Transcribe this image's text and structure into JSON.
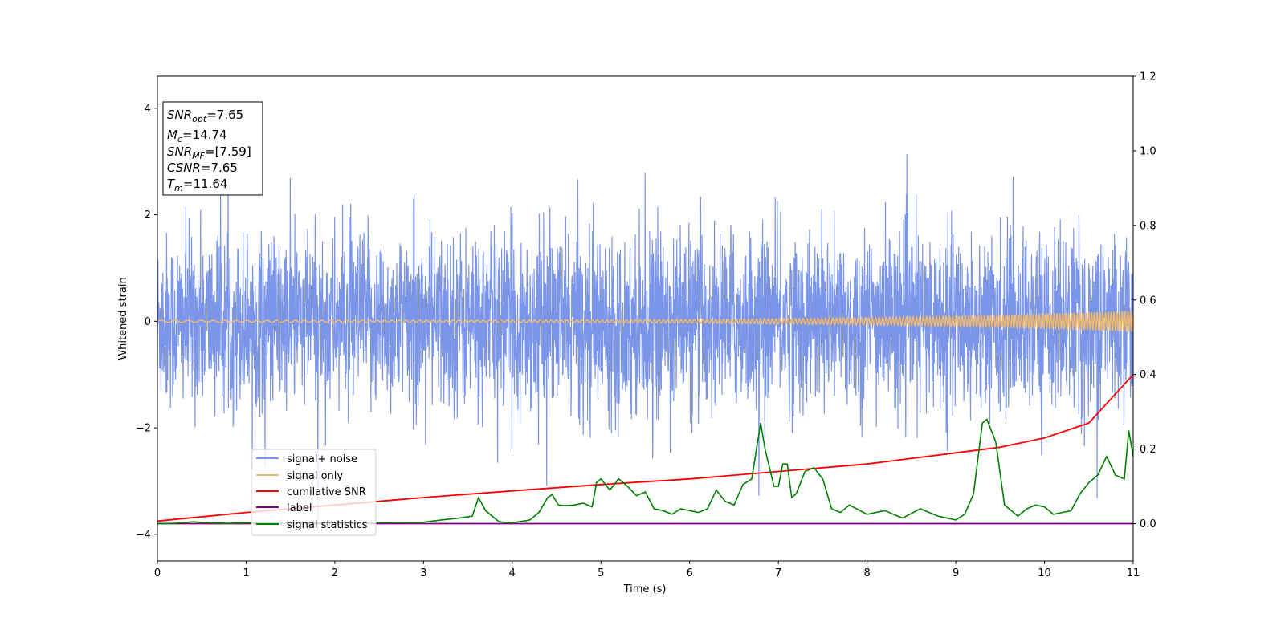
{
  "chart_data": {
    "type": "line",
    "xlabel": "Time (s)",
    "ylabel_left": "Whitened strain",
    "xlim": [
      0,
      11
    ],
    "ylim_left": [
      -4.5,
      4.6
    ],
    "ylim_right": [
      -0.1,
      1.2
    ],
    "x_ticks": [
      0,
      1,
      2,
      3,
      4,
      5,
      6,
      7,
      8,
      9,
      10,
      11
    ],
    "y_ticks_left": [
      -4,
      -2,
      0,
      2,
      4
    ],
    "y_ticks_right": [
      0.0,
      0.2,
      0.4,
      0.6,
      0.8,
      1.0,
      1.2
    ],
    "x_tick_labels": [
      "0",
      "1",
      "2",
      "3",
      "4",
      "5",
      "6",
      "7",
      "8",
      "9",
      "10",
      "11"
    ],
    "y_tick_labels_left": [
      "−4",
      "−2",
      "0",
      "2",
      "4"
    ],
    "y_tick_labels_right": [
      "0.0",
      "0.2",
      "0.4",
      "0.6",
      "0.8",
      "1.0",
      "1.2"
    ],
    "grid": false,
    "legend_position": "lower-left",
    "annotation": {
      "snr_opt": {
        "name": "SNR",
        "sub": "opt",
        "value": "=7.65"
      },
      "mc": {
        "name": "M",
        "sub": "c",
        "value": "=14.74"
      },
      "snr_mf": {
        "name": "SNR",
        "sub": "MF",
        "value": "=[7.59]"
      },
      "csnr": {
        "name": "CSNR",
        "value": "=7.65"
      },
      "tm": {
        "name": "T",
        "sub": "m",
        "value": "=11.64"
      }
    },
    "series": [
      {
        "name": "signal+ noise",
        "axis": "left",
        "color": "#7b96e8",
        "description_kind": "noise",
        "sigma": 0.82,
        "min": -4.1,
        "max": 4.2
      },
      {
        "name": "signal only",
        "axis": "left",
        "color": "#f0b86e",
        "description_kind": "chirp",
        "amp_start": 0.02,
        "amp_end": 0.2
      },
      {
        "name": "cumilative SNR",
        "axis": "right",
        "color": "#ff0000",
        "x": [
          0,
          1,
          2,
          3,
          4,
          5,
          6,
          7,
          8,
          9,
          9.5,
          10,
          10.5,
          11
        ],
        "y": [
          0.007,
          0.03,
          0.05,
          0.07,
          0.088,
          0.105,
          0.12,
          0.14,
          0.16,
          0.19,
          0.205,
          0.23,
          0.27,
          0.4
        ]
      },
      {
        "name": "label",
        "axis": "right",
        "color": "#800080",
        "x": [
          0,
          11
        ],
        "y": [
          0,
          0
        ]
      },
      {
        "name": "signal statistics",
        "axis": "right",
        "color": "#008000",
        "x": [
          0,
          0.2,
          0.4,
          0.6,
          0.8,
          1.0,
          1.5,
          2.0,
          2.5,
          3.0,
          3.2,
          3.4,
          3.55,
          3.62,
          3.7,
          3.85,
          4.0,
          4.2,
          4.3,
          4.4,
          4.45,
          4.52,
          4.6,
          4.7,
          4.8,
          4.9,
          4.95,
          5.0,
          5.1,
          5.2,
          5.3,
          5.4,
          5.5,
          5.6,
          5.7,
          5.8,
          5.9,
          6.0,
          6.1,
          6.2,
          6.3,
          6.4,
          6.5,
          6.6,
          6.7,
          6.8,
          6.85,
          6.95,
          7.0,
          7.05,
          7.1,
          7.15,
          7.2,
          7.3,
          7.4,
          7.5,
          7.6,
          7.7,
          7.8,
          8.0,
          8.2,
          8.4,
          8.6,
          8.8,
          9.0,
          9.1,
          9.2,
          9.3,
          9.35,
          9.45,
          9.55,
          9.7,
          9.8,
          9.9,
          10.0,
          10.1,
          10.2,
          10.3,
          10.4,
          10.5,
          10.6,
          10.7,
          10.8,
          10.9,
          10.95,
          11.0
        ],
        "y": [
          0.0,
          0.001,
          0.005,
          0.002,
          0.001,
          0.002,
          0.003,
          0.002,
          0.003,
          0.004,
          0.01,
          0.015,
          0.02,
          0.07,
          0.035,
          0.005,
          0.002,
          0.01,
          0.03,
          0.07,
          0.078,
          0.05,
          0.048,
          0.05,
          0.055,
          0.045,
          0.11,
          0.12,
          0.09,
          0.12,
          0.1,
          0.075,
          0.085,
          0.04,
          0.035,
          0.025,
          0.04,
          0.035,
          0.03,
          0.04,
          0.09,
          0.06,
          0.05,
          0.105,
          0.12,
          0.27,
          0.2,
          0.1,
          0.1,
          0.16,
          0.16,
          0.07,
          0.08,
          0.14,
          0.15,
          0.12,
          0.04,
          0.03,
          0.05,
          0.025,
          0.035,
          0.015,
          0.04,
          0.02,
          0.01,
          0.025,
          0.08,
          0.27,
          0.28,
          0.22,
          0.05,
          0.02,
          0.04,
          0.05,
          0.045,
          0.025,
          0.03,
          0.035,
          0.08,
          0.11,
          0.13,
          0.18,
          0.13,
          0.12,
          0.25,
          0.18
        ]
      }
    ]
  }
}
